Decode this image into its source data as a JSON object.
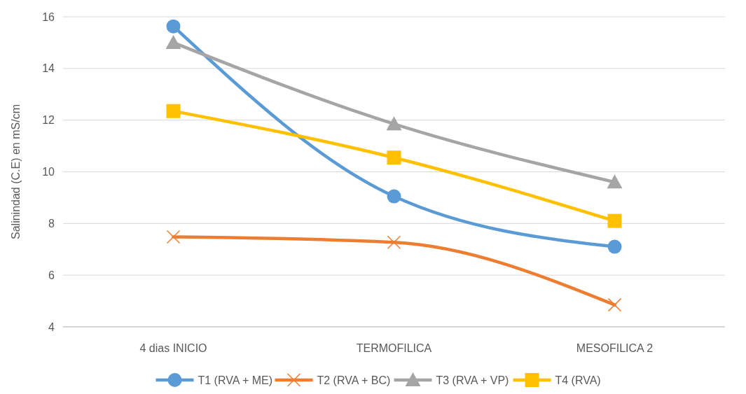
{
  "chart_data": {
    "type": "line",
    "ylabel": "Salinindad  (C.E) en mS/cm",
    "categories": [
      "4 dias INICIO",
      "TERMOFILICA",
      "MESOFILICA 2"
    ],
    "series": [
      {
        "name": "T1 (RVA + ME)",
        "color": "#5b9bd5",
        "marker": "circle",
        "values": [
          15.63,
          9.05,
          7.1
        ]
      },
      {
        "name": "T2 (RVA + BC)",
        "color": "#ed7d31",
        "marker": "cross",
        "values": [
          7.48,
          7.27,
          4.85
        ]
      },
      {
        "name": "T3 (RVA + VP)",
        "color": "#a5a5a5",
        "marker": "triangle",
        "values": [
          15.0,
          11.85,
          9.6
        ]
      },
      {
        "name": "T4 (RVA)",
        "color": "#ffc000",
        "marker": "square",
        "values": [
          12.35,
          10.55,
          8.1
        ]
      }
    ],
    "ylim": [
      4,
      16
    ],
    "yticks": [
      4,
      6,
      8,
      10,
      12,
      14,
      16
    ],
    "grid": "y",
    "legend": "bottom",
    "line_style": "solid"
  }
}
